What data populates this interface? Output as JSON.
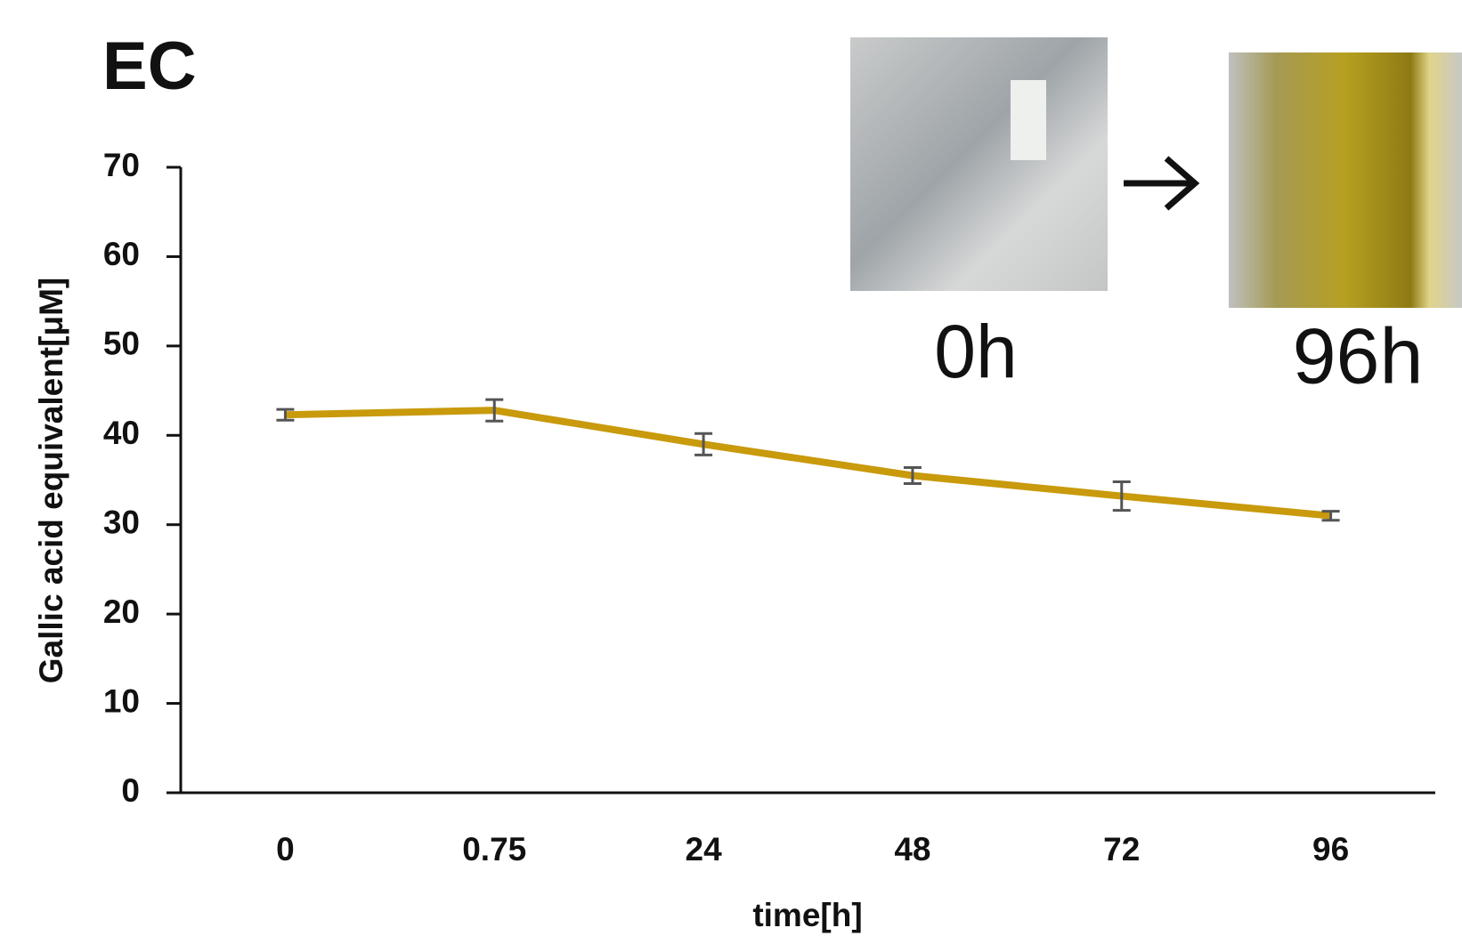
{
  "chart_data": {
    "type": "line",
    "title": "EC",
    "annotations": [
      "0h",
      "96h"
    ],
    "x_label": "time[h]",
    "y_label": "Gallic acid equivalent[μM]",
    "categories": [
      "0",
      "0.75",
      "24",
      "48",
      "72",
      "96"
    ],
    "series": [
      {
        "color": "#c89a0c",
        "values": [
          42.3,
          42.8,
          39.0,
          35.5,
          33.2,
          31.0
        ],
        "errors": [
          0.6,
          1.2,
          1.2,
          0.9,
          1.6,
          0.5
        ]
      }
    ],
    "ylim": [
      0,
      70
    ],
    "yticks": [
      0,
      10,
      20,
      30,
      40,
      50,
      60,
      70
    ],
    "grid": false
  }
}
